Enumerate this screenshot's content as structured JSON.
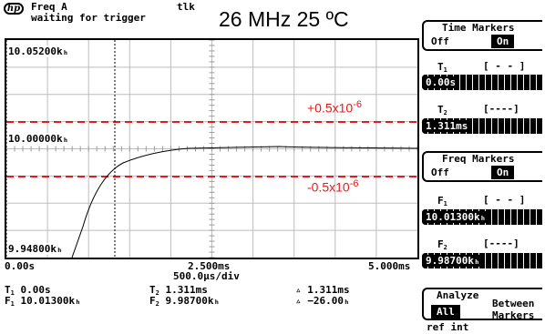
{
  "header": {
    "logo": "hp",
    "line1": "Freq A",
    "status": "tlk",
    "line2": "waiting for trigger",
    "title": "26 MHz 25 ºC"
  },
  "graph": {
    "y_top_label": "10.05200kₕ",
    "y_mid_label": "10.00000kₕ",
    "y_bottom_label": "9.94800kₕ",
    "x_left_label": "0.00s",
    "x_mid_label": "2.500ms",
    "x_right_label": "5.000ms",
    "scale_label": "500.0µs/div",
    "upper_limit_label": "+0.5x10",
    "upper_limit_exp": "-6",
    "lower_limit_label": "-0.5x10",
    "lower_limit_exp": "-6",
    "limit_color": "#e8191a"
  },
  "readouts": {
    "t1": "0.00s",
    "f1": "10.01300kₕ",
    "t2": "1.311ms",
    "f2": "9.98700kₕ",
    "dt": "1.311ms",
    "df": "−26.00ₕ"
  },
  "softkeys": {
    "time_markers": {
      "title": "Time Markers",
      "off": "Off",
      "on": "On"
    },
    "t1": {
      "label": "T",
      "sub": "1",
      "value": "0.00s",
      "bracket": "[ - - ]"
    },
    "t2": {
      "label": "T",
      "sub": "2",
      "value": "1.311ms",
      "bracket": "[----]"
    },
    "freq_markers": {
      "title": "Freq Markers",
      "off": "Off",
      "on": "On"
    },
    "f1": {
      "label": "F",
      "sub": "1",
      "value": "10.01300kₕ",
      "bracket": "[ - - ]"
    },
    "f2": {
      "label": "F",
      "sub": "2",
      "value": "9.98700kₕ",
      "bracket": "[----]"
    },
    "analyze": {
      "title": "Analyze",
      "all": "All",
      "between_line1": "Between",
      "between_line2": "Markers"
    }
  },
  "footer": {
    "ref": "ref int"
  }
}
